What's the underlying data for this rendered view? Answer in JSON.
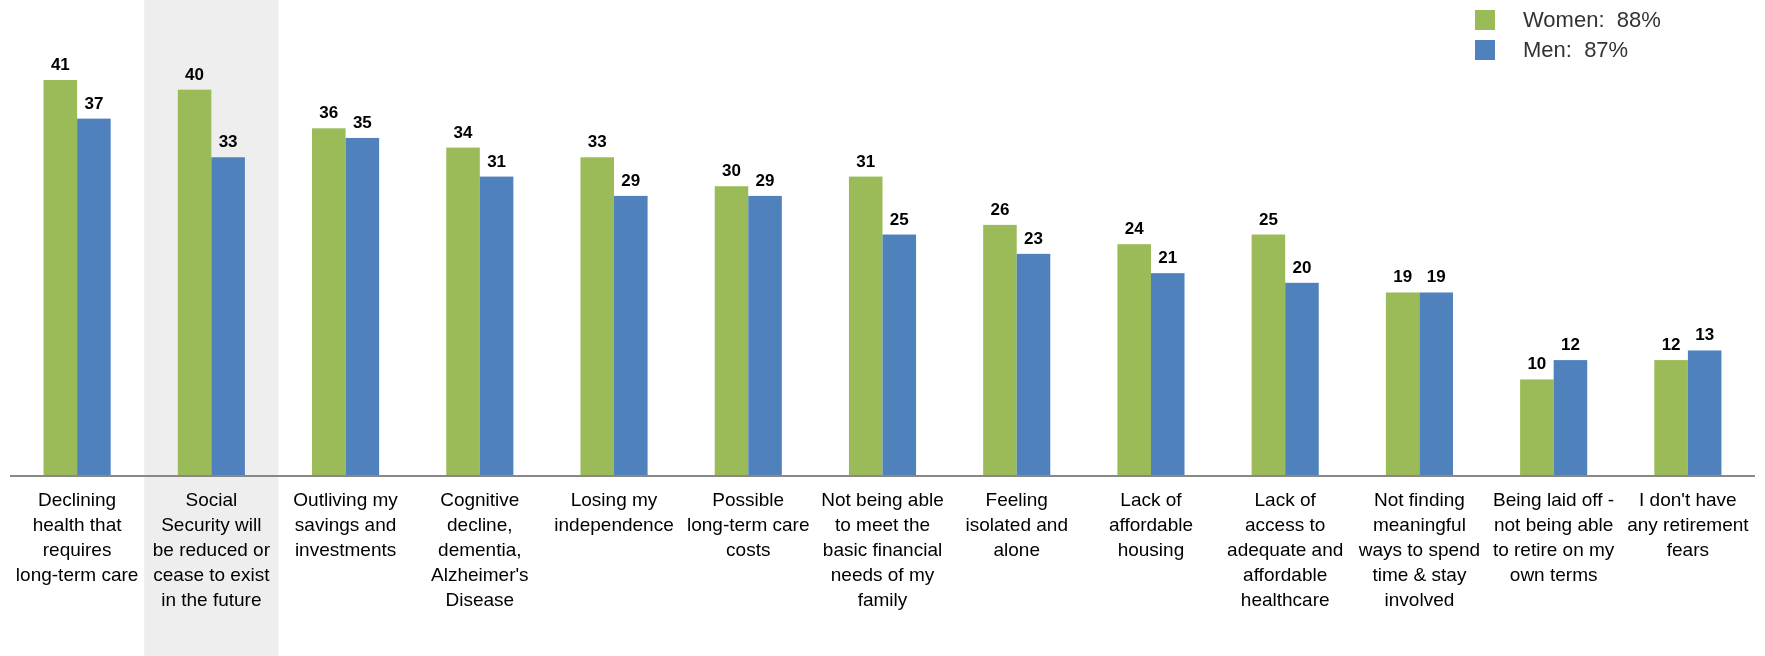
{
  "chart_data": {
    "type": "bar",
    "data_labels": true,
    "legend": "top right",
    "categories": [
      "Declining health that requires long-term care",
      "Social Security will be reduced or cease to exist in the future",
      "Outliving my savings and investments",
      "Cognitive decline, dementia, Alzheimer's Disease",
      "Losing my independence",
      "Possible long-term care costs",
      "Not being able to meet the basic financial needs of my family",
      "Feeling isolated and alone",
      "Lack of affordable housing",
      "Lack of access to adequate and affordable healthcare",
      "Not finding meaningful ways to spend time & stay involved",
      "Being laid off - not being able to retire on my own terms",
      "I don't have any retirement fears"
    ],
    "series": [
      {
        "name": "Women:  88%",
        "color": "#9bbb59",
        "values": [
          41,
          40,
          36,
          34,
          33,
          30,
          31,
          26,
          24,
          25,
          19,
          10,
          12
        ]
      },
      {
        "name": "Men:  87%",
        "color": "#4f81bd",
        "values": [
          37,
          33,
          35,
          31,
          29,
          29,
          25,
          23,
          21,
          20,
          19,
          12,
          13
        ]
      }
    ],
    "bands": [
      {
        "axis": "x",
        "from": "Social Security will be reduced or cease to exist in the future",
        "to": "Social Security will be reduced or cease to exist in the future",
        "color": "#eeeeee"
      }
    ]
  }
}
